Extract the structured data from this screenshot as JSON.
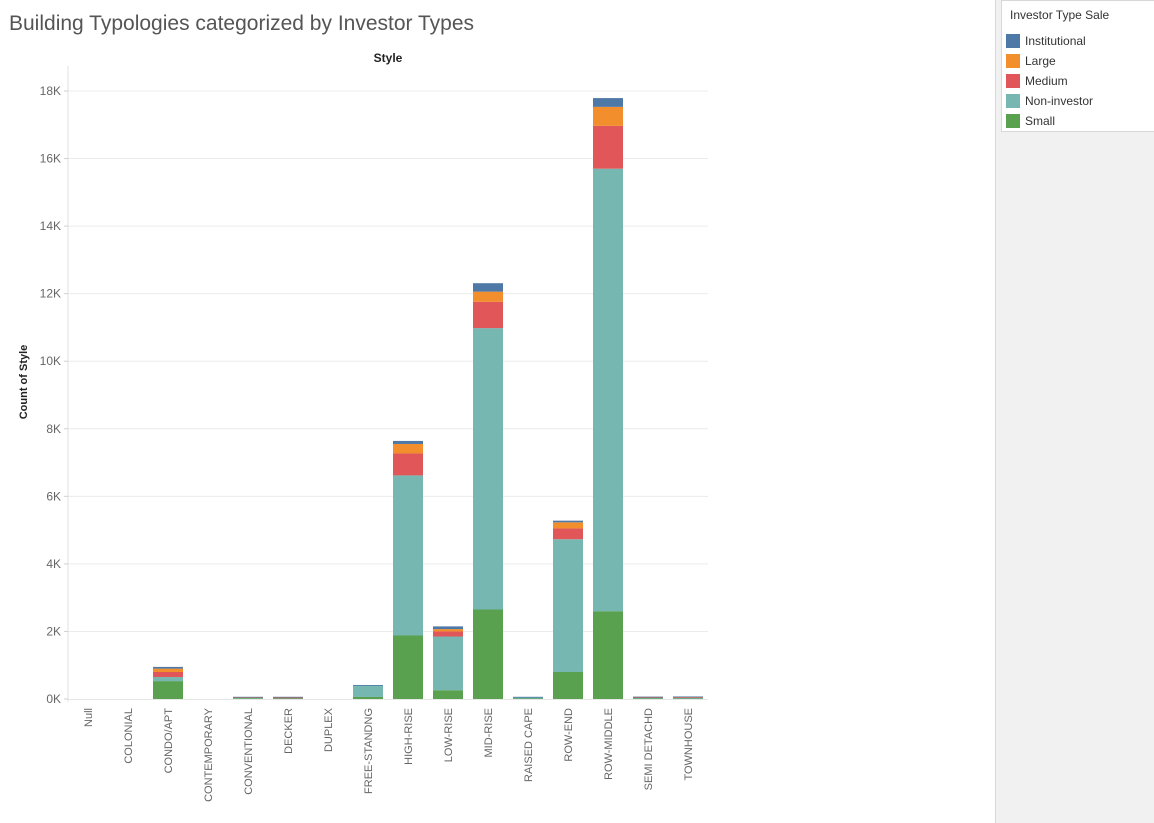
{
  "title": "Building Typologies categorized by Investor Types",
  "legend": {
    "title": "Investor Type Sale",
    "items": [
      {
        "label": "Institutional",
        "color": "#4e79a7"
      },
      {
        "label": "Large",
        "color": "#f28e2b"
      },
      {
        "label": "Medium",
        "color": "#e15759"
      },
      {
        "label": "Non-investor",
        "color": "#76b7b2"
      },
      {
        "label": "Small",
        "color": "#59a14f"
      }
    ]
  },
  "chart_data": {
    "type": "bar",
    "stacked": true,
    "title": "Building Typologies categorized by Investor Types",
    "column_header": "Style",
    "xlabel": "",
    "ylabel": "Count of Style",
    "ylim": [
      0,
      18500
    ],
    "yticks": [
      0,
      2000,
      4000,
      6000,
      8000,
      10000,
      12000,
      14000,
      16000,
      18000
    ],
    "ytick_labels": [
      "0K",
      "2K",
      "4K",
      "6K",
      "8K",
      "10K",
      "12K",
      "14K",
      "16K",
      "18K"
    ],
    "grid": true,
    "legend_position": "top-right",
    "categories": [
      "Null",
      "COLONIAL",
      "CONDO/APT",
      "CONTEMPORARY",
      "CONVENTIONAL",
      "DECKER",
      "DUPLEX",
      "FREE-STANDNG",
      "HIGH-RISE",
      "LOW-RISE",
      "MID-RISE",
      "RAISED CAPE",
      "ROW-END",
      "ROW-MIDDLE",
      "SEMI DETACHD",
      "TOWNHOUSE"
    ],
    "series": [
      {
        "name": "Small",
        "color": "#59a14f",
        "values": [
          0,
          0,
          530,
          0,
          20,
          15,
          0,
          60,
          1880,
          260,
          2650,
          15,
          800,
          2600,
          15,
          15
        ]
      },
      {
        "name": "Non-investor",
        "color": "#76b7b2",
        "values": [
          0,
          0,
          120,
          0,
          30,
          20,
          0,
          340,
          4740,
          1590,
          8330,
          40,
          3930,
          13100,
          30,
          20
        ]
      },
      {
        "name": "Medium",
        "color": "#e15759",
        "values": [
          0,
          0,
          150,
          0,
          5,
          10,
          0,
          0,
          650,
          150,
          780,
          0,
          320,
          1270,
          10,
          20
        ]
      },
      {
        "name": "Large",
        "color": "#f28e2b",
        "values": [
          0,
          0,
          100,
          0,
          5,
          15,
          0,
          0,
          280,
          70,
          300,
          0,
          180,
          560,
          10,
          15
        ]
      },
      {
        "name": "Institutional",
        "color": "#4e79a7",
        "values": [
          0,
          0,
          50,
          0,
          5,
          5,
          0,
          15,
          90,
          80,
          250,
          10,
          50,
          260,
          5,
          5
        ]
      }
    ]
  }
}
